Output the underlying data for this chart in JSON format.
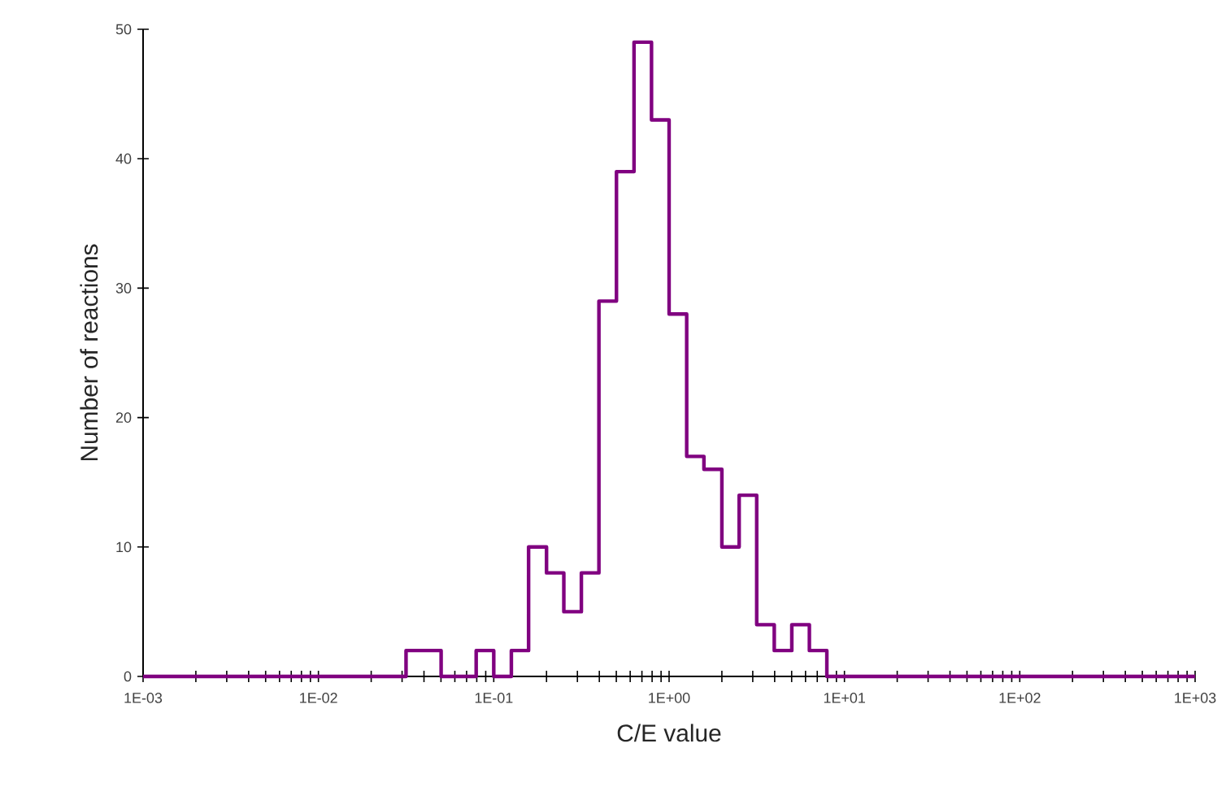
{
  "chart_data": {
    "type": "histogram",
    "xlabel": "C/E value",
    "ylabel": "Number of reactions",
    "color": "#800080",
    "log": "x",
    "bins": [
      0.001,
      0.0316,
      0.0398,
      0.0501,
      0.0631,
      0.0794,
      0.1,
      0.126,
      0.158,
      0.2,
      0.251,
      0.316,
      0.398,
      0.501,
      0.631,
      0.794,
      1,
      1.26,
      1.58,
      2.0,
      2.51,
      3.16,
      3.98,
      5.01,
      6.31,
      7.94,
      1000
    ],
    "values": [
      0,
      2,
      2,
      0,
      0,
      2,
      0,
      2,
      10,
      8,
      5,
      8,
      29,
      39,
      49,
      43,
      28,
      17,
      16,
      10,
      14,
      4,
      2,
      4,
      2,
      0
    ],
    "xlim": [
      0.001,
      1000
    ],
    "ylim": [
      0,
      50
    ],
    "xticks": [
      {
        "value": 0.001,
        "label": "1E-03"
      },
      {
        "value": 0.01,
        "label": "1E-02"
      },
      {
        "value": 0.1,
        "label": "1E-01"
      },
      {
        "value": 1,
        "label": "1E+00"
      },
      {
        "value": 10,
        "label": "1E+01"
      },
      {
        "value": 100,
        "label": "1E+02"
      },
      {
        "value": 1000,
        "label": "1E+03"
      }
    ],
    "yticks": [
      0,
      10,
      20,
      30,
      40,
      50
    ],
    "grid": false
  }
}
